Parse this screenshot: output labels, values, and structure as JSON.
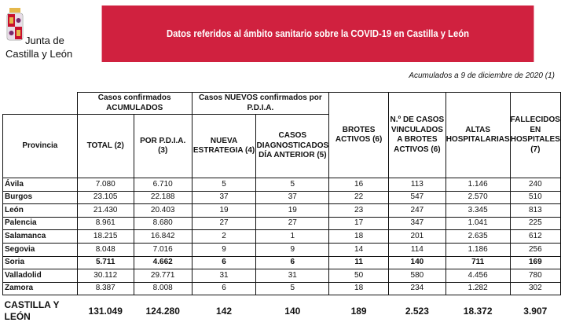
{
  "logo": {
    "line1": "Junta de",
    "line2": "Castilla y León",
    "colors": {
      "red": "#c8102e",
      "gold": "#e5b84b",
      "purple": "#7a2a6b"
    }
  },
  "banner": {
    "title": "Datos referidos al ámbito sanitario sobre la COVID-19 en Castilla y León",
    "color": "#d0213f"
  },
  "subtitle": "Acumulados a 9 de diciembre de 2020 (1)",
  "table": {
    "group_headers": [
      "Casos confirmados ACUMULADOS",
      "Casos NUEVOS confirmados por P.D.I.A."
    ],
    "columns": [
      "Provincia",
      "TOTAL (2)",
      "POR P.D.I.A. (3)",
      "NUEVA ESTRATEGIA (4)",
      "CASOS DIAGNOSTICADOS DÍA ANTERIOR (5)",
      "BROTES ACTIVOS (6)",
      "N.º DE CASOS VINCULADOS A BROTES ACTIVOS (6)",
      "ALTAS HOSPITALARIAS",
      "FALLECIDOS EN HOSPITALES (7)"
    ],
    "rows": [
      [
        "Ávila",
        "7.080",
        "6.710",
        "5",
        "5",
        "16",
        "113",
        "1.146",
        "240"
      ],
      [
        "Burgos",
        "23.105",
        "22.188",
        "37",
        "37",
        "22",
        "547",
        "2.570",
        "510"
      ],
      [
        "León",
        "21.430",
        "20.403",
        "19",
        "19",
        "23",
        "247",
        "3.345",
        "813"
      ],
      [
        "Palencia",
        "8.961",
        "8.680",
        "27",
        "27",
        "17",
        "347",
        "1.041",
        "225"
      ],
      [
        "Salamanca",
        "18.215",
        "16.842",
        "2",
        "1",
        "18",
        "201",
        "2.635",
        "612"
      ],
      [
        "Segovia",
        "8.048",
        "7.016",
        "9",
        "9",
        "14",
        "114",
        "1.186",
        "256"
      ],
      [
        "Soria",
        "5.711",
        "4.662",
        "6",
        "6",
        "11",
        "140",
        "711",
        "169"
      ],
      [
        "Valladolid",
        "30.112",
        "29.771",
        "31",
        "31",
        "50",
        "580",
        "4.456",
        "780"
      ],
      [
        "Zamora",
        "8.387",
        "8.008",
        "6",
        "5",
        "18",
        "234",
        "1.282",
        "302"
      ]
    ],
    "bold_row": "Soria",
    "total": [
      "CASTILLA Y LEÓN",
      "131.049",
      "124.280",
      "142",
      "140",
      "189",
      "2.523",
      "18.372",
      "3.907"
    ]
  }
}
